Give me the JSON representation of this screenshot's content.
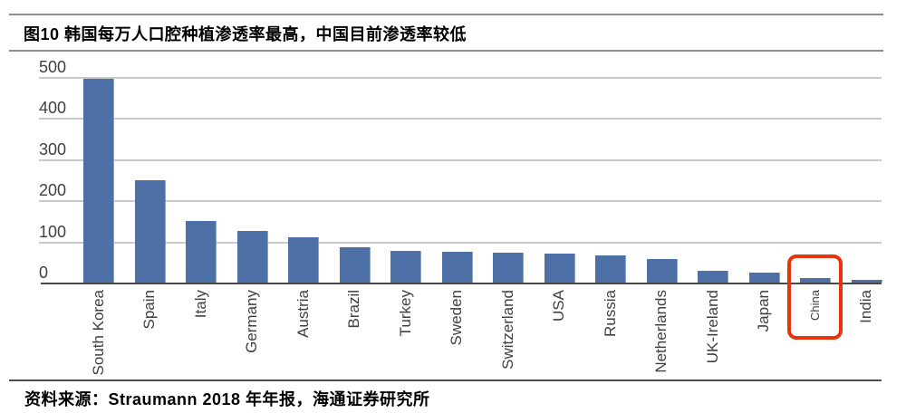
{
  "header": {
    "title": "图10 韩国每万人口腔种植渗透率最高，中国目前渗透率较低"
  },
  "footer": {
    "source": "资料来源：Straumann 2018 年年报，海通证券研究所"
  },
  "chart_data": {
    "type": "bar",
    "title": "韩国每万人口腔种植渗透率最高，中国目前渗透率较低",
    "categories": [
      "South Korea",
      "Spain",
      "Italy",
      "Germany",
      "Austria",
      "Brazil",
      "Turkey",
      "Sweden",
      "Switzerland",
      "USA",
      "Russia",
      "Netherlands",
      "UK-Ireland",
      "Japan",
      "China",
      "India"
    ],
    "values": [
      495,
      250,
      150,
      125,
      110,
      85,
      78,
      75,
      72,
      70,
      65,
      58,
      28,
      24,
      10,
      2
    ],
    "xlabel": "",
    "ylabel": "",
    "ylim": [
      0,
      500
    ],
    "yticks": [
      0,
      100,
      200,
      300,
      400,
      500
    ],
    "grid": true,
    "legend_position": "none",
    "bar_color": "#4d71a6",
    "gridline_color": "#c9c9c9",
    "axis_color": "#4a4a4a",
    "tick_text_color": "#404040",
    "highlight": {
      "category": "China",
      "style": "red rounded rectangle around bar and label",
      "color": "#e8330d"
    }
  }
}
